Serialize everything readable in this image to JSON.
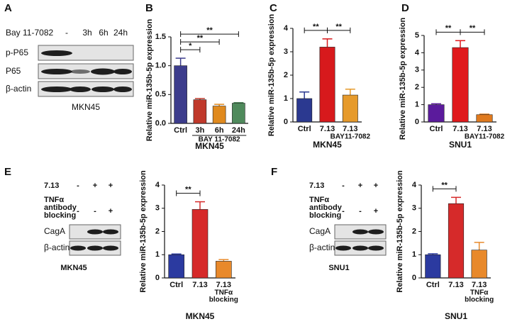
{
  "panel_letters": [
    "A",
    "B",
    "C",
    "D",
    "E",
    "F"
  ],
  "blots": [
    {
      "treatment": "Bay 11-7082",
      "lanes": [
        "-",
        "3h",
        "6h",
        "24h"
      ],
      "rows": [
        "p-P65",
        "P65",
        "β-actin"
      ],
      "cell_line": "MKN45"
    },
    {
      "treatments": [
        {
          "label_lines": [
            "7.13"
          ],
          "signs": [
            "-",
            "+",
            "+"
          ]
        },
        {
          "label_lines": [
            "TNFα",
            "antibody",
            "blocking"
          ],
          "signs": [
            "-",
            "-",
            "+"
          ]
        }
      ],
      "rows": [
        "CagA",
        "β-actin"
      ],
      "cell_line": "MKN45"
    },
    {
      "treatments": [
        {
          "label_lines": [
            "7.13"
          ],
          "signs": [
            "-",
            "+",
            "+"
          ]
        },
        {
          "label_lines": [
            "TNFα",
            "antibody",
            "blocking"
          ],
          "signs": [
            "-",
            "-",
            "+"
          ]
        }
      ],
      "rows": [
        "CagA",
        "β-actin"
      ],
      "cell_line": "SNU1"
    }
  ],
  "chart_data": [
    {
      "type": "bar",
      "ylabel": "Relative miR-135b-5p expression",
      "xlabel": "MKN45",
      "categories": [
        "Ctrl",
        "3h",
        "6h",
        "24h"
      ],
      "sublabels": [
        [],
        [],
        [],
        []
      ],
      "group_label": "BAY 11-7082",
      "values": [
        1.0,
        0.41,
        0.3,
        0.35
      ],
      "errors": [
        0.13,
        0.02,
        0.03,
        0.01
      ],
      "colors": [
        "#3c3c8c",
        "#c0392b",
        "#e08a1e",
        "#4f8a5c"
      ],
      "ylim": [
        0,
        1.5
      ],
      "yticks": [
        {
          "value": 0,
          "label": "0.0"
        },
        0.5,
        {
          "value": 1,
          "label": "1.0"
        },
        1.5
      ],
      "brackets": [
        {
          "label": "*",
          "from": 0,
          "to": 1
        },
        {
          "label": "**",
          "from": 0,
          "to": 2
        },
        {
          "label": "**",
          "from": 0,
          "to": 3
        }
      ]
    },
    {
      "type": "bar",
      "ylabel": "Relative miR-135b-5p expression",
      "xlabel": "MKN45",
      "categories": [
        "Ctrl",
        "7.13",
        "7.13"
      ],
      "sublabels": [
        [],
        [],
        [
          "BAY11-7082"
        ]
      ],
      "values": [
        1.0,
        3.2,
        1.15
      ],
      "errors": [
        0.28,
        0.35,
        0.25
      ],
      "colors": [
        "#2b3990",
        "#d7191c",
        "#e69a2b"
      ],
      "ylim": [
        0,
        4
      ],
      "yticks": [
        0,
        1,
        2,
        3,
        4
      ],
      "brackets": [
        {
          "label": "**",
          "from": 0,
          "to": 1
        },
        {
          "label": "**",
          "from": 1,
          "to": 2
        }
      ]
    },
    {
      "type": "bar",
      "ylabel": "Relative miR-135b-5p expression",
      "xlabel": "SNU1",
      "categories": [
        "Ctrl",
        "7.13",
        "7.13"
      ],
      "sublabels": [
        [],
        [],
        [
          "BAY11-7082"
        ]
      ],
      "values": [
        1.0,
        4.3,
        0.42
      ],
      "errors": [
        0.05,
        0.4,
        0.03
      ],
      "colors": [
        "#5b1b9c",
        "#e0191c",
        "#e07a1e"
      ],
      "ylim": [
        0,
        5
      ],
      "yticks": [
        0,
        1,
        2,
        3,
        4,
        5
      ],
      "brackets": [
        {
          "label": "**",
          "from": 0,
          "to": 1
        },
        {
          "label": "**",
          "from": 1,
          "to": 2
        }
      ]
    },
    {
      "type": "bar",
      "ylabel": "Relative miR-135b-5p expression",
      "xlabel": "MKN45",
      "categories": [
        "Ctrl",
        "7.13",
        "7.13"
      ],
      "sublabels": [
        [],
        [],
        [
          "TNFα",
          "blocking"
        ]
      ],
      "values": [
        1.0,
        2.95,
        0.72
      ],
      "errors": [
        0.03,
        0.33,
        0.07
      ],
      "colors": [
        "#2b3aa0",
        "#d62a2a",
        "#e8892b"
      ],
      "ylim": [
        0,
        4
      ],
      "yticks": [
        0,
        1,
        2,
        3,
        4
      ],
      "brackets": [
        {
          "label": "**",
          "from": 0,
          "to": 1
        }
      ]
    },
    {
      "type": "bar",
      "ylabel": "Relative miR-135b-5p expression",
      "xlabel": "SNU1",
      "categories": [
        "Ctrl",
        "7.13",
        "7.13"
      ],
      "sublabels": [
        [],
        [],
        [
          "TNFα",
          "blocking"
        ]
      ],
      "values": [
        1.0,
        3.2,
        1.2
      ],
      "errors": [
        0.04,
        0.27,
        0.33
      ],
      "colors": [
        "#2b3aa0",
        "#d62a2a",
        "#e8892b"
      ],
      "ylim": [
        0,
        4
      ],
      "yticks": [
        0,
        1,
        2,
        3,
        4
      ],
      "brackets": [
        {
          "label": "**",
          "from": 0,
          "to": 1
        }
      ]
    }
  ]
}
